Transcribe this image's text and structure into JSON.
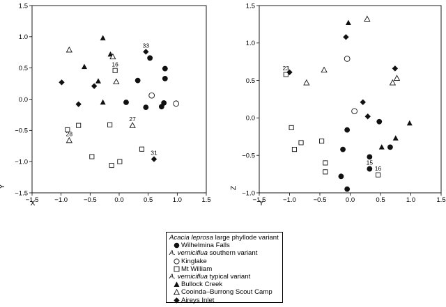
{
  "chart_data": [
    {
      "type": "scatter",
      "xlabel": "X",
      "ylabel": "Y",
      "xlim": [
        -1.5,
        1.5
      ],
      "ylim": [
        -1.5,
        1.5
      ],
      "xticks": [
        "−1.5",
        "−1.0",
        "−0.5",
        "0.0",
        "0.5",
        "1.0",
        "1.5"
      ],
      "yticks": [
        "−1.5",
        "−1.0",
        "−0.5",
        "0.0",
        "0.5",
        "1.0",
        "1.5"
      ],
      "series": [
        {
          "name": "Wilhelmina Falls",
          "marker": "filled-circle",
          "points": [
            [
              0.12,
              -0.05
            ],
            [
              0.32,
              0.3
            ],
            [
              0.46,
              -0.13
            ],
            [
              0.53,
              0.66
            ],
            [
              0.73,
              -0.12
            ],
            [
              0.77,
              -0.06
            ],
            [
              0.79,
              0.33
            ],
            [
              0.79,
              0.49
            ]
          ]
        },
        {
          "name": "Kinglake",
          "marker": "open-circle",
          "points": [
            [
              0.56,
              0.06
            ],
            [
              0.98,
              -0.07
            ]
          ]
        },
        {
          "name": "Mt William",
          "marker": "open-square",
          "points": [
            [
              -0.89,
              -0.49
            ],
            [
              -0.7,
              -0.42
            ],
            [
              -0.47,
              -0.92
            ],
            [
              -0.16,
              -0.41
            ],
            [
              -0.13,
              -1.06
            ],
            [
              0.01,
              -1.0
            ],
            [
              0.39,
              -0.8
            ],
            [
              -0.07,
              0.46
            ]
          ]
        },
        {
          "name": "Bullock Creek",
          "marker": "filled-triangle",
          "points": [
            [
              -0.6,
              0.52
            ],
            [
              -0.36,
              0.29
            ],
            [
              -0.28,
              0.98
            ],
            [
              -0.28,
              -0.05
            ],
            [
              -0.15,
              0.72
            ]
          ]
        },
        {
          "name": "Cooinda–Burrong Scout Camp",
          "marker": "open-triangle",
          "points": [
            [
              -0.86,
              0.79
            ],
            [
              -0.86,
              -0.66
            ],
            [
              -0.11,
              0.68
            ],
            [
              -0.05,
              0.28
            ],
            [
              0.23,
              -0.42
            ]
          ]
        },
        {
          "name": "Aireys Inlet",
          "marker": "filled-diamond",
          "points": [
            [
              -0.99,
              0.27
            ],
            [
              -0.7,
              -0.08
            ],
            [
              -0.43,
              0.21
            ],
            [
              0.46,
              0.76
            ],
            [
              0.6,
              -0.96
            ]
          ]
        }
      ],
      "annotations": [
        {
          "text": "33",
          "x": 0.46,
          "y": 0.76
        },
        {
          "text": "16",
          "x": -0.07,
          "y": 0.46
        },
        {
          "text": "27",
          "x": 0.23,
          "y": -0.42
        },
        {
          "text": "28",
          "x": -0.86,
          "y": -0.66
        },
        {
          "text": "31",
          "x": 0.6,
          "y": -0.96
        }
      ]
    },
    {
      "type": "scatter",
      "xlabel": "Y",
      "ylabel": "Z",
      "xlim": [
        -1.5,
        1.5
      ],
      "ylim": [
        -1.0,
        1.5
      ],
      "xticks": [
        "−1.5",
        "−1.0",
        "−0.5",
        "0.0",
        "0.5",
        "1.0",
        "1.5"
      ],
      "yticks": [
        "−1.0",
        "−0.5",
        "0.0",
        "0.5",
        "1.0",
        "1.5"
      ],
      "series": [
        {
          "name": "Wilhelmina Falls",
          "marker": "filled-circle",
          "points": [
            [
              -0.15,
              -0.78
            ],
            [
              -0.12,
              -0.42
            ],
            [
              -0.05,
              -0.16
            ],
            [
              -0.05,
              -0.95
            ],
            [
              0.32,
              -0.52
            ],
            [
              0.32,
              -0.68
            ],
            [
              0.48,
              -0.05
            ],
            [
              0.66,
              -0.39
            ]
          ]
        },
        {
          "name": "Kinglake",
          "marker": "open-circle",
          "points": [
            [
              -0.05,
              0.79
            ],
            [
              0.07,
              0.09
            ]
          ]
        },
        {
          "name": "Mt William",
          "marker": "open-square",
          "points": [
            [
              -1.06,
              0.58
            ],
            [
              -0.97,
              -0.13
            ],
            [
              -0.92,
              -0.42
            ],
            [
              -0.81,
              -0.33
            ],
            [
              -0.47,
              -0.31
            ],
            [
              -0.41,
              -0.6
            ],
            [
              -0.41,
              -0.72
            ],
            [
              0.46,
              -0.76
            ]
          ]
        },
        {
          "name": "Bullock Creek",
          "marker": "filled-triangle",
          "points": [
            [
              -0.03,
              1.27
            ],
            [
              0.52,
              -0.39
            ],
            [
              0.75,
              -0.27
            ],
            [
              0.98,
              -0.07
            ]
          ]
        },
        {
          "name": "Cooinda–Burrong Scout Camp",
          "marker": "open-triangle",
          "points": [
            [
              -0.72,
              0.47
            ],
            [
              -0.43,
              0.64
            ],
            [
              0.28,
              1.32
            ],
            [
              0.7,
              0.47
            ],
            [
              0.77,
              0.53
            ]
          ]
        },
        {
          "name": "Aireys Inlet",
          "marker": "filled-diamond",
          "points": [
            [
              -1.0,
              0.61
            ],
            [
              -0.07,
              1.08
            ],
            [
              0.21,
              0.21
            ],
            [
              0.29,
              0.02
            ],
            [
              0.74,
              0.66
            ]
          ]
        }
      ],
      "annotations": [
        {
          "text": "23",
          "x": -1.06,
          "y": 0.58
        },
        {
          "text": "15",
          "x": 0.32,
          "y": -0.68
        },
        {
          "text": "16",
          "x": 0.46,
          "y": -0.76
        }
      ]
    }
  ],
  "legend": {
    "groups": [
      {
        "title_italic": "Acacia leprosa",
        "title_rest": " large phyllode variant",
        "items": [
          {
            "label": "Wilhelmina Falls",
            "marker": "filled-circle"
          }
        ]
      },
      {
        "title_italic": "A. verniciflua",
        "title_rest": " southern variant",
        "items": [
          {
            "label": "Kinglake",
            "marker": "open-circle"
          },
          {
            "label": "Mt William",
            "marker": "open-square"
          }
        ]
      },
      {
        "title_italic": "A. verniciflua",
        "title_rest": " typical variant",
        "items": [
          {
            "label": "Bullock Creek",
            "marker": "filled-triangle"
          },
          {
            "label": "Cooinda–Burrong Scout Camp",
            "marker": "open-triangle"
          },
          {
            "label": "Aireys Inlet",
            "marker": "filled-diamond"
          }
        ]
      }
    ]
  }
}
